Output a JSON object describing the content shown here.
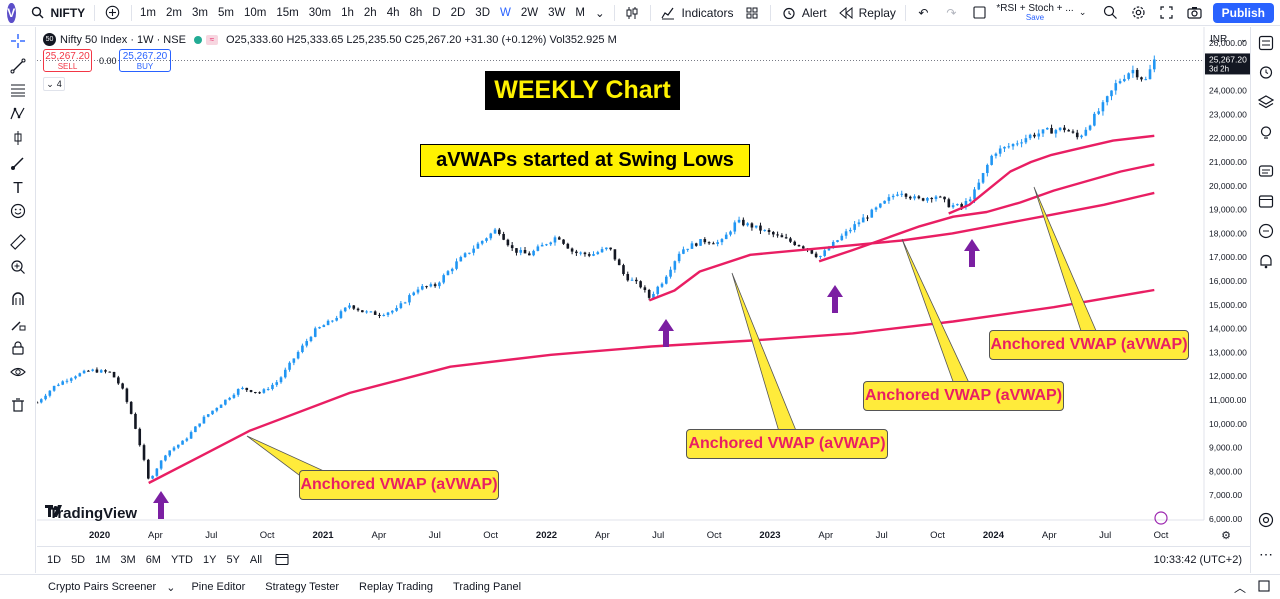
{
  "topbar": {
    "avatar": "V",
    "symbol": "NIFTY",
    "intervals": [
      "1m",
      "2m",
      "3m",
      "5m",
      "10m",
      "15m",
      "30m",
      "1h",
      "2h",
      "4h",
      "8h",
      "D",
      "2D",
      "3D",
      "W",
      "2W",
      "3W",
      "M"
    ],
    "active_interval": "W",
    "indicators_label": "Indicators",
    "alert_label": "Alert",
    "replay_label": "Replay",
    "layout_name": "*RSI + Stoch + ...",
    "layout_sub": "Save",
    "publish_label": "Publish"
  },
  "legend": {
    "badge": "50",
    "title": "Nifty 50 Index · 1W · NSE",
    "ohlc": "O25,333.60  H25,333.65  L25,235.50  C25,267.20  +31.30 (+0.12%)  Vol352.925 M",
    "sell_price": "25,267.20",
    "sell_label": "SELL",
    "spread": "0.00",
    "buy_price": "25,267.20",
    "buy_label": "BUY",
    "collapsed_count": "4"
  },
  "price_axis": {
    "currency": "INR",
    "last_price": "25,267.20",
    "countdown": "3d 2h",
    "ticks": [
      "26,000.00",
      "25,000.00",
      "24,000.00",
      "23,000.00",
      "22,000.00",
      "21,000.00",
      "20,000.00",
      "19,000.00",
      "18,000.00",
      "17,000.00",
      "16,000.00",
      "15,000.00",
      "14,000.00",
      "13,000.00",
      "12,000.00",
      "11,000.00",
      "10,000.00",
      "9,000.00",
      "8,000.00",
      "7,000.00",
      "6,000.00"
    ]
  },
  "time_axis": {
    "labels": [
      "2020",
      "Apr",
      "Jul",
      "Oct",
      "2021",
      "Apr",
      "Jul",
      "Oct",
      "2022",
      "Apr",
      "Jul",
      "Oct",
      "2023",
      "Apr",
      "Jul",
      "Oct",
      "2024",
      "Apr",
      "Jul",
      "Oct"
    ]
  },
  "annotations": {
    "weekly": "WEEKLY Chart",
    "title": "aVWAPs started at Swing Lows",
    "label": "Anchored VWAP (aVWAP)"
  },
  "brand": "TradingView",
  "range_buttons": [
    "1D",
    "5D",
    "1M",
    "3M",
    "6M",
    "YTD",
    "1Y",
    "5Y",
    "All"
  ],
  "clock": "10:33:42 (UTC+2)",
  "bottom_tabs": [
    "Crypto Pairs Screener",
    "Pine Editor",
    "Strategy Tester",
    "Replay Trading",
    "Trading Panel"
  ],
  "colors": {
    "up": "#2196f3",
    "down": "#131722",
    "avwap": "#e91e63",
    "arrow": "#7b1fa2",
    "accent": "#2962ff"
  },
  "chart_data": {
    "type": "candlestick",
    "interval": "1W",
    "ylim": [
      6000,
      26000
    ],
    "ylabel": "INR",
    "anchors": [
      {
        "label": "Mar 2020",
        "price": 7511
      },
      {
        "label": "Jun 2022",
        "price": 15183
      },
      {
        "label": "Mar 2023",
        "price": 16828
      },
      {
        "label": "Oct 2023",
        "price": 18837
      }
    ],
    "avwap_series": [
      {
        "anchor": "Mar 2020",
        "points": [
          [
            0.0,
            7511
          ],
          [
            0.05,
            8600
          ],
          [
            0.1,
            9700
          ],
          [
            0.2,
            11300
          ],
          [
            0.3,
            12400
          ],
          [
            0.4,
            12900
          ],
          [
            0.5,
            13250
          ],
          [
            0.6,
            13500
          ],
          [
            0.7,
            13800
          ],
          [
            0.8,
            14300
          ],
          [
            0.9,
            14900
          ],
          [
            1.0,
            15620
          ]
        ]
      },
      {
        "anchor": "Jun 2022",
        "points": [
          [
            0.0,
            15183
          ],
          [
            0.05,
            15600
          ],
          [
            0.1,
            16400
          ],
          [
            0.2,
            17100
          ],
          [
            0.3,
            17300
          ],
          [
            0.4,
            17500
          ],
          [
            0.5,
            17700
          ],
          [
            0.6,
            18000
          ],
          [
            0.7,
            18400
          ],
          [
            0.8,
            18800
          ],
          [
            0.9,
            19200
          ],
          [
            1.0,
            19700
          ]
        ]
      },
      {
        "anchor": "Mar 2023",
        "points": [
          [
            0.0,
            16828
          ],
          [
            0.1,
            17300
          ],
          [
            0.2,
            17800
          ],
          [
            0.3,
            18300
          ],
          [
            0.4,
            18700
          ],
          [
            0.5,
            18900
          ],
          [
            0.6,
            19300
          ],
          [
            0.7,
            19800
          ],
          [
            0.8,
            20200
          ],
          [
            0.9,
            20600
          ],
          [
            1.0,
            20900
          ]
        ]
      },
      {
        "anchor": "Oct 2023",
        "points": [
          [
            0.0,
            18837
          ],
          [
            0.1,
            19200
          ],
          [
            0.2,
            19900
          ],
          [
            0.3,
            20600
          ],
          [
            0.4,
            21000
          ],
          [
            0.5,
            21300
          ],
          [
            0.6,
            21500
          ],
          [
            0.7,
            21700
          ],
          [
            0.8,
            21900
          ],
          [
            1.0,
            22100
          ]
        ]
      }
    ],
    "close_path": [
      [
        2019.72,
        10900
      ],
      [
        2019.8,
        11600
      ],
      [
        2019.88,
        12000
      ],
      [
        2019.96,
        12250
      ],
      [
        2020.05,
        12150
      ],
      [
        2020.1,
        11500
      ],
      [
        2020.15,
        10200
      ],
      [
        2020.2,
        8400
      ],
      [
        2020.22,
        7600
      ],
      [
        2020.3,
        8800
      ],
      [
        2020.38,
        9300
      ],
      [
        2020.46,
        10200
      ],
      [
        2020.55,
        10900
      ],
      [
        2020.63,
        11500
      ],
      [
        2020.72,
        11300
      ],
      [
        2020.8,
        11800
      ],
      [
        2020.88,
        12900
      ],
      [
        2020.96,
        13900
      ],
      [
        2021.05,
        14400
      ],
      [
        2021.12,
        15000
      ],
      [
        2021.18,
        14700
      ],
      [
        2021.25,
        14600
      ],
      [
        2021.33,
        14800
      ],
      [
        2021.42,
        15700
      ],
      [
        2021.5,
        15800
      ],
      [
        2021.6,
        16800
      ],
      [
        2021.7,
        17600
      ],
      [
        2021.78,
        18200
      ],
      [
        2021.85,
        17300
      ],
      [
        2021.92,
        17100
      ],
      [
        2022.0,
        17600
      ],
      [
        2022.05,
        17900
      ],
      [
        2022.12,
        17200
      ],
      [
        2022.2,
        17100
      ],
      [
        2022.28,
        17400
      ],
      [
        2022.35,
        16200
      ],
      [
        2022.42,
        15800
      ],
      [
        2022.46,
        15300
      ],
      [
        2022.52,
        16000
      ],
      [
        2022.6,
        17300
      ],
      [
        2022.7,
        17700
      ],
      [
        2022.78,
        17600
      ],
      [
        2022.85,
        18500
      ],
      [
        2022.92,
        18300
      ],
      [
        2023.0,
        18000
      ],
      [
        2023.08,
        17700
      ],
      [
        2023.16,
        17400
      ],
      [
        2023.22,
        17000
      ],
      [
        2023.3,
        17700
      ],
      [
        2023.4,
        18500
      ],
      [
        2023.5,
        19200
      ],
      [
        2023.58,
        19800
      ],
      [
        2023.66,
        19400
      ],
      [
        2023.74,
        19600
      ],
      [
        2023.8,
        19200
      ],
      [
        2023.86,
        19100
      ],
      [
        2023.92,
        19800
      ],
      [
        2024.0,
        21400
      ],
      [
        2024.08,
        21700
      ],
      [
        2024.16,
        22100
      ],
      [
        2024.24,
        22300
      ],
      [
        2024.32,
        22400
      ],
      [
        2024.38,
        22000
      ],
      [
        2024.42,
        22500
      ],
      [
        2024.5,
        23500
      ],
      [
        2024.55,
        24300
      ],
      [
        2024.62,
        24900
      ],
      [
        2024.68,
        24400
      ],
      [
        2024.72,
        25267
      ]
    ]
  }
}
